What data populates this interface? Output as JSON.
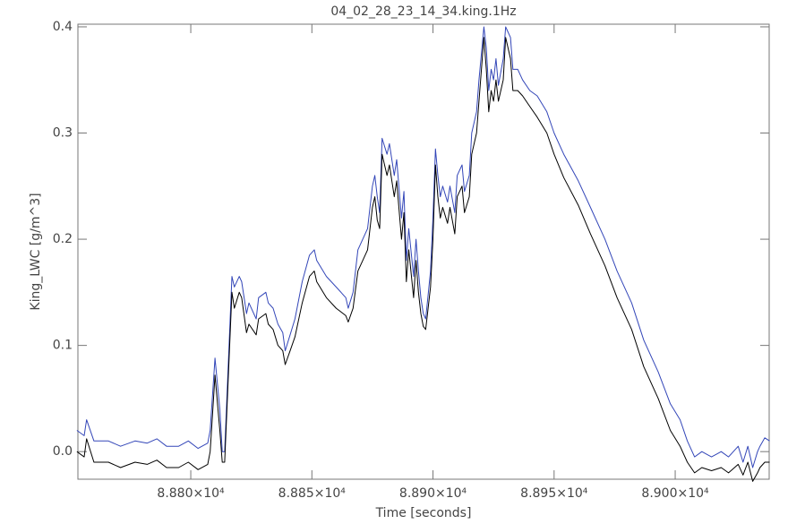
{
  "chart_data": {
    "type": "line",
    "title": "04_02_28_23_14_34.king.1Hz",
    "x_label": "Time [seconds]",
    "y_label": "King_LWC [g/m^3]",
    "xlim": [
      88753.4,
      89038.8
    ],
    "ylim": [
      -0.026,
      0.4025
    ],
    "xticks": [
      {
        "value": 88800,
        "label": "8.880×10⁴"
      },
      {
        "value": 88850,
        "label": "8.885×10⁴"
      },
      {
        "value": 88900,
        "label": "8.890×10⁴"
      },
      {
        "value": 88950,
        "label": "8.895×10⁴"
      },
      {
        "value": 89000,
        "label": "8.900×10⁴"
      }
    ],
    "yticks": [
      {
        "value": 0,
        "label": "0.0"
      },
      0.1,
      0.2,
      0.3,
      0.4
    ],
    "x": [
      88753,
      88756,
      88757,
      88760,
      88766,
      88771,
      88777,
      88782,
      88786,
      88790,
      88795,
      88799,
      88803,
      88807,
      88808,
      88810,
      88812,
      88813,
      88814,
      88817,
      88818,
      88820,
      88821,
      88823,
      88824,
      88827,
      88828,
      88831,
      88832,
      88834,
      88836,
      88838,
      88839,
      88841,
      88843,
      88846,
      88849,
      88851,
      88852,
      88856,
      88860,
      88864,
      88865,
      88867,
      88869,
      88871,
      88873,
      88875,
      88876,
      88877,
      88878,
      88879,
      88881,
      88882,
      88884,
      88885,
      88887,
      88888,
      88889,
      88890,
      88892,
      88893,
      88894,
      88895,
      88896,
      88897,
      88899,
      88900,
      88901,
      88902,
      88903,
      88904,
      88906,
      88907,
      88909,
      88910,
      88912,
      88913,
      88915,
      88916,
      88918,
      88919,
      88921,
      88922,
      88923,
      88924,
      88925,
      88926,
      88927,
      88929,
      88930,
      88932,
      88933,
      88935,
      88937,
      88940,
      88943,
      88947,
      88950,
      88954,
      88960,
      88965,
      88971,
      88976,
      88982,
      88987,
      88993,
      88998,
      89002,
      89005,
      89008,
      89011,
      89015,
      89019,
      89022,
      89026,
      89028,
      89030,
      89032,
      89034,
      89035,
      89037,
      89039
    ],
    "series": [
      {
        "color": "#3346b8",
        "values": [
          0.02,
          0.015,
          0.03,
          0.01,
          0.01,
          0.005,
          0.01,
          0.008,
          0.012,
          0.005,
          0.005,
          0.01,
          0.003,
          0.008,
          0.02,
          0.088,
          0.04,
          0.0,
          0.0,
          0.165,
          0.155,
          0.165,
          0.16,
          0.13,
          0.14,
          0.125,
          0.145,
          0.15,
          0.14,
          0.135,
          0.12,
          0.112,
          0.095,
          0.11,
          0.125,
          0.16,
          0.185,
          0.19,
          0.18,
          0.165,
          0.155,
          0.145,
          0.135,
          0.15,
          0.19,
          0.2,
          0.21,
          0.25,
          0.26,
          0.24,
          0.225,
          0.295,
          0.28,
          0.29,
          0.26,
          0.275,
          0.22,
          0.245,
          0.18,
          0.21,
          0.165,
          0.2,
          0.17,
          0.145,
          0.13,
          0.125,
          0.17,
          0.22,
          0.285,
          0.26,
          0.24,
          0.25,
          0.235,
          0.25,
          0.225,
          0.26,
          0.27,
          0.245,
          0.26,
          0.3,
          0.32,
          0.35,
          0.4,
          0.38,
          0.34,
          0.36,
          0.35,
          0.37,
          0.345,
          0.37,
          0.4,
          0.39,
          0.36,
          0.36,
          0.35,
          0.34,
          0.335,
          0.32,
          0.3,
          0.28,
          0.255,
          0.23,
          0.2,
          0.17,
          0.14,
          0.105,
          0.075,
          0.045,
          0.03,
          0.01,
          -0.005,
          0.0,
          -0.005,
          0.0,
          -0.005,
          0.005,
          -0.01,
          0.005,
          -0.015,
          0.0,
          0.005,
          0.013,
          0.01
        ]
      },
      {
        "color": "#000000",
        "values": [
          0.0,
          -0.005,
          0.012,
          -0.01,
          -0.01,
          -0.015,
          -0.01,
          -0.012,
          -0.008,
          -0.015,
          -0.015,
          -0.01,
          -0.017,
          -0.012,
          0.0,
          0.072,
          0.02,
          -0.01,
          -0.01,
          0.15,
          0.135,
          0.15,
          0.145,
          0.112,
          0.12,
          0.11,
          0.125,
          0.13,
          0.12,
          0.115,
          0.1,
          0.095,
          0.082,
          0.095,
          0.108,
          0.14,
          0.165,
          0.17,
          0.16,
          0.145,
          0.135,
          0.128,
          0.122,
          0.135,
          0.17,
          0.18,
          0.19,
          0.23,
          0.24,
          0.218,
          0.21,
          0.28,
          0.26,
          0.27,
          0.24,
          0.255,
          0.2,
          0.225,
          0.16,
          0.19,
          0.145,
          0.18,
          0.15,
          0.13,
          0.118,
          0.115,
          0.155,
          0.2,
          0.27,
          0.24,
          0.22,
          0.23,
          0.215,
          0.23,
          0.205,
          0.24,
          0.25,
          0.225,
          0.24,
          0.28,
          0.3,
          0.33,
          0.39,
          0.36,
          0.32,
          0.34,
          0.33,
          0.35,
          0.33,
          0.35,
          0.39,
          0.37,
          0.34,
          0.34,
          0.335,
          0.325,
          0.315,
          0.3,
          0.28,
          0.258,
          0.232,
          0.205,
          0.175,
          0.145,
          0.115,
          0.08,
          0.05,
          0.02,
          0.005,
          -0.01,
          -0.02,
          -0.015,
          -0.018,
          -0.015,
          -0.02,
          -0.012,
          -0.022,
          -0.01,
          -0.028,
          -0.02,
          -0.015,
          -0.01,
          -0.01
        ]
      }
    ]
  }
}
